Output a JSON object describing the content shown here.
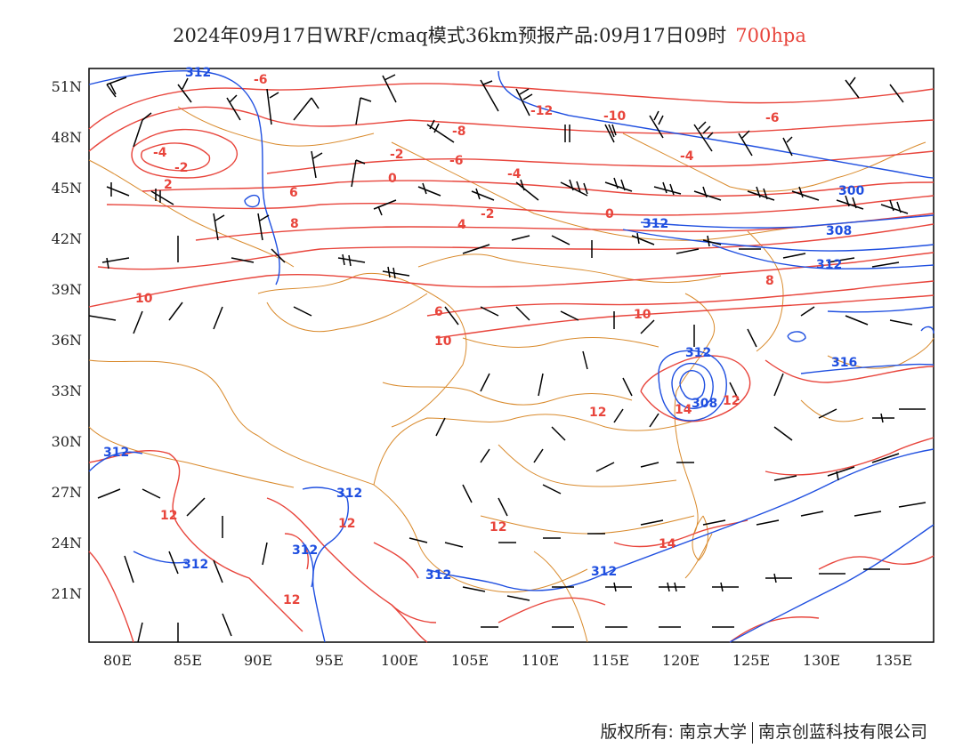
{
  "title": {
    "main": "2024年09月17日WRF/cmaq模式36km预报产品:09月17日09时",
    "level": "700hpa"
  },
  "axes": {
    "lat_labels": [
      "51N",
      "48N",
      "45N",
      "42N",
      "39N",
      "36N",
      "33N",
      "30N",
      "27N",
      "24N",
      "21N"
    ],
    "lon_labels": [
      "80E",
      "85E",
      "90E",
      "95E",
      "100E",
      "105E",
      "110E",
      "115E",
      "120E",
      "125E",
      "130E",
      "135E"
    ]
  },
  "contours": {
    "geopotential_labels": [
      "312",
      "312",
      "312",
      "308",
      "312",
      "312",
      "308",
      "300",
      "312",
      "312",
      "312",
      "312",
      "316",
      "312"
    ],
    "temperature_labels": [
      "-6",
      "-4",
      "-2",
      "-2",
      "0",
      "2",
      "4",
      "6",
      "6",
      "8",
      "8",
      "10",
      "10",
      "10",
      "12",
      "12",
      "12",
      "12",
      "12",
      "12",
      "14",
      "14",
      "-12",
      "-10",
      "-8",
      "-6",
      "-4",
      "-2",
      "0",
      "-6",
      "-4"
    ]
  },
  "colors": {
    "geopotential": "#1f4fe0",
    "temperature": "#e8453c",
    "boundaries": "#d98a2c",
    "wind_barbs": "#000000",
    "title_level": "#e8453c"
  },
  "footer": {
    "left": "版权所有: 南京大学",
    "right": "南京创蓝科技有限公司"
  }
}
